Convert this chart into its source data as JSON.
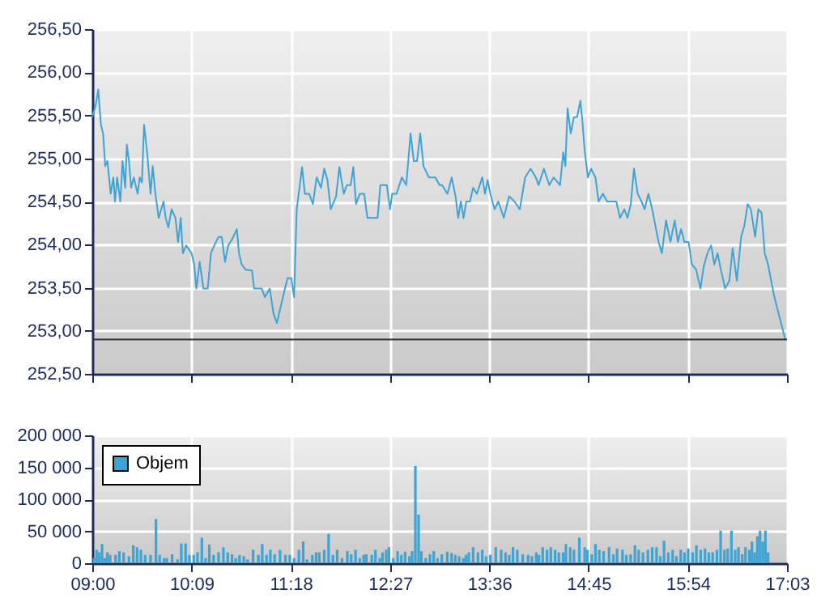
{
  "chart_data": [
    {
      "type": "line",
      "xlim": [
        9,
        17.05
      ],
      "xticks": [
        {
          "value": 9,
          "label": null
        },
        {
          "value": 10.15,
          "label": null
        },
        {
          "value": 11.3,
          "label": null
        },
        {
          "value": 12.45,
          "label": null
        },
        {
          "value": 13.6,
          "label": null
        },
        {
          "value": 14.75,
          "label": null
        },
        {
          "value": 15.9,
          "label": null
        },
        {
          "value": 17.05,
          "label": null
        }
      ],
      "ylim": [
        252.5,
        256.5
      ],
      "yticks": [
        {
          "value": 252.5,
          "label": "252,50"
        },
        {
          "value": 253,
          "label": "253,00"
        },
        {
          "value": 253.5,
          "label": "253,50"
        },
        {
          "value": 254,
          "label": "254,00"
        },
        {
          "value": 254.5,
          "label": "254,50"
        },
        {
          "value": 255,
          "label": "255,00"
        },
        {
          "value": 255.5,
          "label": "255,50"
        },
        {
          "value": 256,
          "label": "256,00"
        },
        {
          "value": 256.5,
          "label": "256,50"
        }
      ],
      "tick_labels": "y",
      "grid": true,
      "ref_lines": [
        {
          "axis": "y",
          "value": 252.9,
          "color": "#333333"
        }
      ],
      "series": [
        {
          "color": "#3fa3d3",
          "x": [
            9.0,
            9.038,
            9.069,
            9.1,
            9.125,
            9.15,
            9.175,
            9.213,
            9.244,
            9.263,
            9.288,
            9.325,
            9.35,
            9.381,
            9.4,
            9.425,
            9.45,
            9.481,
            9.525,
            9.55,
            9.575,
            9.6,
            9.638,
            9.675,
            9.7,
            9.731,
            9.769,
            9.825,
            9.85,
            9.881,
            9.919,
            9.963,
            9.994,
            10.025,
            10.05,
            10.088,
            10.15,
            10.181,
            10.206,
            10.244,
            10.288,
            10.338,
            10.375,
            10.413,
            10.463,
            10.5,
            10.538,
            10.575,
            10.619,
            10.675,
            10.7,
            10.731,
            10.775,
            10.85,
            10.875,
            10.963,
            11.0,
            11.056,
            11.1,
            11.138,
            11.181,
            11.225,
            11.263,
            11.306,
            11.338,
            11.369,
            11.431,
            11.463,
            11.513,
            11.556,
            11.6,
            11.65,
            11.688,
            11.725,
            11.763,
            11.825,
            11.863,
            11.913,
            11.95,
            11.994,
            12.025,
            12.056,
            12.1,
            12.15,
            12.188,
            12.306,
            12.338,
            12.413,
            12.45,
            12.475,
            12.525,
            12.588,
            12.638,
            12.688,
            12.725,
            12.763,
            12.8,
            12.838,
            12.9,
            12.975,
            13.025,
            13.053,
            13.115,
            13.165,
            13.209,
            13.24,
            13.271,
            13.302,
            13.333,
            13.376,
            13.413,
            13.457,
            13.519,
            13.55,
            13.581,
            13.612,
            13.662,
            13.705,
            13.768,
            13.83,
            13.892,
            13.954,
            14.016,
            14.078,
            14.14,
            14.171,
            14.233,
            14.295,
            14.345,
            14.42,
            14.457,
            14.482,
            14.507,
            14.544,
            14.581,
            14.618,
            14.656,
            14.68,
            14.705,
            14.743,
            14.78,
            14.83,
            14.867,
            14.917,
            14.966,
            15.072,
            15.115,
            15.165,
            15.202,
            15.24,
            15.277,
            15.32,
            15.364,
            15.401,
            15.444,
            15.488,
            15.525,
            15.562,
            15.6,
            15.649,
            15.699,
            15.749,
            15.786,
            15.823,
            15.861,
            15.91,
            15.948,
            15.997,
            16.047,
            16.084,
            16.128,
            16.171,
            16.208,
            16.246,
            16.283,
            16.333,
            16.382,
            16.42,
            16.469,
            16.519,
            16.556,
            16.594,
            16.631,
            16.681,
            16.718,
            16.755,
            16.792,
            16.83,
            16.904,
            17.03
          ],
          "values": [
            255.48,
            255.61,
            255.8,
            255.39,
            255.29,
            254.91,
            254.97,
            254.59,
            254.78,
            254.5,
            254.78,
            254.5,
            254.97,
            254.66,
            255.16,
            254.97,
            254.66,
            254.78,
            254.59,
            254.78,
            254.72,
            255.39,
            255.04,
            254.59,
            254.91,
            254.59,
            254.31,
            254.5,
            254.31,
            254.2,
            254.41,
            254.31,
            254.03,
            254.31,
            253.9,
            253.99,
            253.9,
            253.77,
            253.49,
            253.8,
            253.49,
            253.49,
            253.9,
            253.99,
            254.09,
            254.09,
            253.8,
            253.99,
            254.06,
            254.18,
            253.9,
            253.77,
            253.71,
            253.7,
            253.49,
            253.49,
            253.39,
            253.49,
            253.2,
            253.09,
            253.27,
            253.46,
            253.61,
            253.61,
            253.39,
            254.41,
            254.9,
            254.59,
            254.59,
            254.47,
            254.78,
            254.66,
            254.88,
            254.75,
            254.41,
            254.56,
            254.9,
            254.59,
            254.69,
            254.69,
            254.9,
            254.47,
            254.59,
            254.59,
            254.31,
            254.31,
            254.69,
            254.69,
            254.41,
            254.59,
            254.59,
            254.78,
            254.69,
            255.29,
            254.97,
            254.97,
            255.29,
            254.91,
            254.78,
            254.78,
            254.69,
            254.69,
            254.59,
            254.78,
            254.56,
            254.31,
            254.5,
            254.31,
            254.5,
            254.5,
            254.66,
            254.59,
            254.78,
            254.59,
            254.75,
            254.59,
            254.41,
            254.5,
            254.31,
            254.56,
            254.5,
            254.41,
            254.78,
            254.88,
            254.78,
            254.69,
            254.88,
            254.69,
            254.78,
            254.69,
            255.07,
            254.91,
            255.58,
            255.29,
            255.48,
            255.48,
            255.67,
            255.42,
            255.1,
            254.78,
            254.88,
            254.78,
            254.5,
            254.59,
            254.5,
            254.5,
            254.31,
            254.41,
            254.31,
            254.47,
            254.88,
            254.59,
            254.5,
            254.41,
            254.59,
            254.41,
            254.22,
            254.03,
            253.9,
            254.28,
            254.03,
            254.28,
            254.03,
            254.18,
            254.03,
            254.03,
            253.77,
            253.71,
            253.49,
            253.74,
            253.9,
            253.99,
            253.77,
            253.9,
            253.71,
            253.49,
            253.58,
            253.96,
            253.58,
            254.09,
            254.22,
            254.47,
            254.41,
            254.09,
            254.41,
            254.37,
            253.9,
            253.77,
            253.39,
            252.9
          ]
        }
      ]
    },
    {
      "type": "bar",
      "xlim": [
        9,
        17.05
      ],
      "xticks": [
        {
          "value": 9,
          "label": "09:00"
        },
        {
          "value": 10.15,
          "label": "10:09"
        },
        {
          "value": 11.3,
          "label": "11:18"
        },
        {
          "value": 12.45,
          "label": "12:27"
        },
        {
          "value": 13.6,
          "label": "13:36"
        },
        {
          "value": 14.75,
          "label": "14:45"
        },
        {
          "value": 15.9,
          "label": "15:54"
        },
        {
          "value": 17.05,
          "label": "17:03"
        }
      ],
      "ylim": [
        0,
        200000
      ],
      "yticks": [
        0,
        {
          "value": 50000,
          "label": "50 000"
        },
        {
          "value": 100000,
          "label": "100 000"
        },
        {
          "value": 150000,
          "label": "150 000"
        },
        {
          "value": 200000,
          "label": "200 000"
        }
      ],
      "grid": true,
      "legend": "top left",
      "series": [
        {
          "name": "Objem",
          "color": "#3fa3d3",
          "x": [
            9.019,
            9.05,
            9.081,
            9.113,
            9.144,
            9.175,
            9.206,
            9.269,
            9.313,
            9.363,
            9.425,
            9.475,
            9.519,
            9.563,
            9.613,
            9.675,
            9.738,
            9.781,
            9.831,
            9.863,
            9.925,
            9.988,
            10.031,
            10.081,
            10.125,
            10.175,
            10.219,
            10.269,
            10.313,
            10.356,
            10.406,
            10.463,
            10.519,
            10.569,
            10.619,
            10.663,
            10.706,
            10.756,
            10.8,
            10.863,
            10.925,
            10.969,
            11.019,
            11.063,
            11.113,
            11.175,
            11.238,
            11.288,
            11.338,
            11.394,
            11.444,
            11.488,
            11.55,
            11.594,
            11.631,
            11.688,
            11.738,
            11.788,
            11.838,
            11.894,
            11.956,
            12.0,
            12.05,
            12.1,
            12.144,
            12.175,
            12.238,
            12.281,
            12.331,
            12.363,
            12.406,
            12.438,
            12.488,
            12.538,
            12.581,
            12.625,
            12.675,
            12.706,
            12.744,
            12.781,
            12.813,
            12.863,
            12.913,
            12.956,
            13.0,
            13.05,
            13.113,
            13.163,
            13.206,
            13.25,
            13.3,
            13.331,
            13.363,
            13.413,
            13.469,
            13.519,
            13.563,
            13.613,
            13.675,
            13.738,
            13.788,
            13.831,
            13.875,
            13.925,
            13.988,
            14.05,
            14.094,
            14.144,
            14.175,
            14.219,
            14.269,
            14.313,
            14.363,
            14.406,
            14.456,
            14.488,
            14.538,
            14.581,
            14.644,
            14.706,
            14.738,
            14.788,
            14.831,
            14.875,
            14.925,
            14.988,
            15.038,
            15.081,
            15.144,
            15.188,
            15.238,
            15.288,
            15.331,
            15.381,
            15.438,
            15.488,
            15.538,
            15.581,
            15.625,
            15.675,
            15.725,
            15.769,
            15.819,
            15.863,
            15.906,
            15.956,
            16.0,
            16.05,
            16.1,
            16.144,
            16.188,
            16.238,
            16.281,
            16.325,
            16.363,
            16.406,
            16.45,
            16.488,
            16.531,
            16.569,
            16.613,
            16.644,
            16.675,
            16.706,
            16.738,
            16.769,
            16.8,
            16.831
          ],
          "values": [
            8000,
            21000,
            17000,
            30000,
            8000,
            17000,
            13000,
            13000,
            19000,
            17000,
            11000,
            28000,
            25000,
            21000,
            13000,
            13000,
            69000,
            13000,
            8000,
            8000,
            14000,
            6000,
            31000,
            31000,
            13000,
            13000,
            17000,
            40000,
            8000,
            29000,
            13000,
            17000,
            25000,
            17000,
            14000,
            8000,
            13000,
            11000,
            6000,
            21000,
            13000,
            30000,
            13000,
            21000,
            14000,
            21000,
            13000,
            13000,
            8000,
            21000,
            34000,
            6000,
            13000,
            17000,
            17000,
            21000,
            46000,
            13000,
            21000,
            8000,
            19000,
            14000,
            21000,
            8000,
            13000,
            14000,
            13000,
            21000,
            8000,
            17000,
            21000,
            25000,
            8000,
            19000,
            13000,
            18000,
            11000,
            19000,
            152000,
            76000,
            19000,
            8000,
            14000,
            19000,
            8000,
            14000,
            18000,
            16000,
            13000,
            11000,
            8000,
            13000,
            17000,
            25000,
            17000,
            21000,
            11000,
            13000,
            25000,
            21000,
            17000,
            13000,
            25000,
            21000,
            14000,
            13000,
            11000,
            17000,
            13000,
            25000,
            21000,
            25000,
            21000,
            17000,
            17000,
            30000,
            25000,
            21000,
            40000,
            25000,
            21000,
            14000,
            30000,
            21000,
            19000,
            25000,
            14000,
            23000,
            21000,
            13000,
            14000,
            28000,
            21000,
            17000,
            21000,
            25000,
            25000,
            11000,
            35000,
            17000,
            21000,
            11000,
            21000,
            17000,
            23000,
            17000,
            28000,
            21000,
            23000,
            17000,
            17000,
            21000,
            51000,
            21000,
            23000,
            51000,
            21000,
            25000,
            14000,
            25000,
            21000,
            34000,
            17000,
            42000,
            51000,
            34000,
            51000,
            17000
          ]
        }
      ]
    }
  ]
}
